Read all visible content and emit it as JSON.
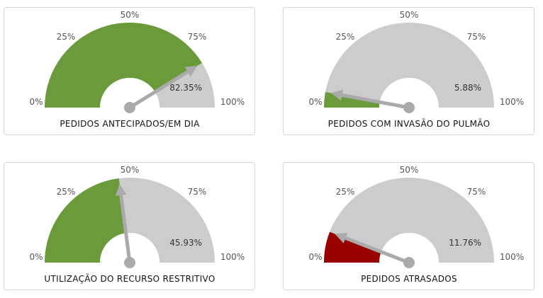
{
  "gauges": [
    {
      "title": "PEDIDOS ANTECIPADOS/EM DIA",
      "value": 82.35,
      "value_label": "82.35%",
      "fill_color": "#6a9a3a"
    },
    {
      "title": "PEDIDOS COM INVASÃO DO PULMÃO",
      "value": 5.88,
      "value_label": "5.88%",
      "fill_color": "#6a9a3a"
    },
    {
      "title": "UTILIZAÇÃO DO RECURSO RESTRITIVO",
      "value": 45.93,
      "value_label": "45.93%",
      "fill_color": "#6a9a3a"
    },
    {
      "title": "PEDIDOS ATRASADOS",
      "value": 11.76,
      "value_label": "11.76%",
      "fill_color": "#990000"
    }
  ],
  "ticks": [
    "0%",
    "25%",
    "50%",
    "75%",
    "100%"
  ],
  "colors": {
    "track": "#cccccc",
    "needle": "#aaaaaa",
    "card_border": "#d5d5d5"
  }
}
